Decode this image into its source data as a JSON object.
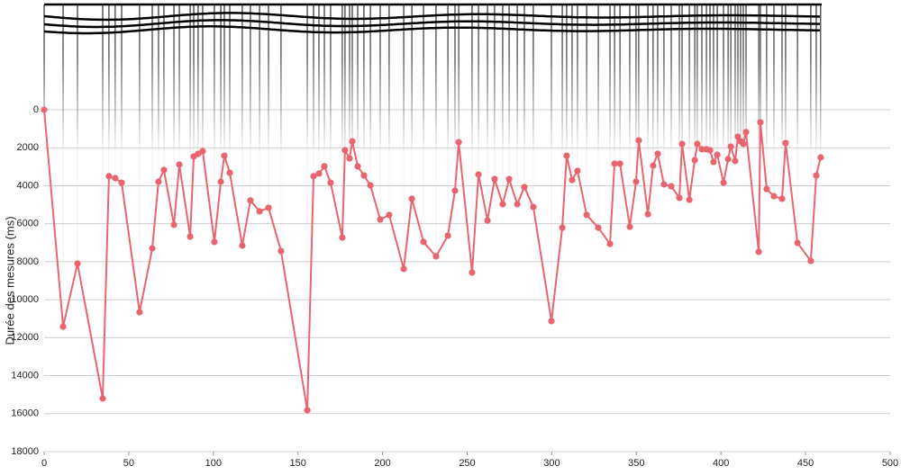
{
  "chart_data": {
    "type": "line",
    "ylabel": "Durée des mesures (ms)",
    "xlim": [
      0,
      500
    ],
    "xticks": [
      0,
      50,
      100,
      150,
      200,
      250,
      300,
      350,
      400,
      450,
      500
    ],
    "ylim": [
      0,
      18000
    ],
    "yticks": [
      0,
      2000,
      4000,
      6000,
      8000,
      10000,
      12000,
      14000,
      16000,
      18000
    ],
    "y_inverted": true,
    "grid": true,
    "series": [
      {
        "color": "#e8656f",
        "x": [
          0,
          11.2,
          19.7,
          34.6,
          38.3,
          42,
          45.8,
          56.4,
          63.9,
          67.6,
          70.8,
          76.7,
          79.9,
          86.3,
          88.4,
          91,
          93.7,
          100.6,
          104.4,
          106.5,
          109.7,
          117.1,
          121.9,
          127.3,
          132.6,
          140,
          155.5,
          159.2,
          162.4,
          165.6,
          169.3,
          176.2,
          177.8,
          180.5,
          182.1,
          185.3,
          189,
          192.8,
          198.6,
          203.9,
          212.5,
          217.3,
          224.2,
          231.6,
          238.6,
          242.8,
          245,
          252.9,
          256.7,
          262,
          266.2,
          271,
          274.8,
          279.6,
          283.8,
          289.1,
          299.8,
          306.2,
          308.8,
          312,
          315.2,
          320.6,
          327.5,
          334.4,
          337.1,
          340.3,
          346.1,
          349.8,
          351.4,
          356.8,
          359.9,
          362.6,
          366.3,
          370.6,
          375.4,
          377,
          381.3,
          384.5,
          386,
          388.7,
          391.4,
          393.5,
          395.6,
          397.8,
          401.5,
          404.2,
          405.8,
          408.4,
          410,
          411.6,
          413.2,
          414.8,
          422.3,
          423.3,
          427,
          431.3,
          436.1,
          438.2,
          445.2,
          453.1,
          456.3,
          458.9
        ],
        "values": [
          0,
          11420,
          8100,
          15200,
          3500,
          3600,
          3840,
          10660,
          7300,
          3790,
          3170,
          6060,
          2890,
          6680,
          2460,
          2320,
          2180,
          6960,
          3790,
          2420,
          3320,
          7150,
          4780,
          5350,
          5160,
          7440,
          15820,
          3500,
          3360,
          2980,
          3840,
          6730,
          2130,
          2560,
          1660,
          2980,
          3460,
          3980,
          5780,
          5540,
          8380,
          4690,
          6960,
          7720,
          6630,
          4260,
          1710,
          8570,
          3410,
          5830,
          3650,
          4970,
          3650,
          4970,
          4070,
          5120,
          11130,
          6210,
          2420,
          3700,
          3220,
          5540,
          6210,
          7060,
          2840,
          2840,
          6160,
          3790,
          1610,
          5500,
          2940,
          2320,
          3930,
          4030,
          4640,
          1800,
          4740,
          2650,
          1800,
          2080,
          2080,
          2130,
          2750,
          2370,
          3840,
          2600,
          1940,
          2700,
          1420,
          1660,
          1800,
          1180,
          7480,
          660,
          4170,
          4550,
          4690,
          1750,
          7010,
          7960,
          3460,
          2510
        ]
      }
    ]
  }
}
